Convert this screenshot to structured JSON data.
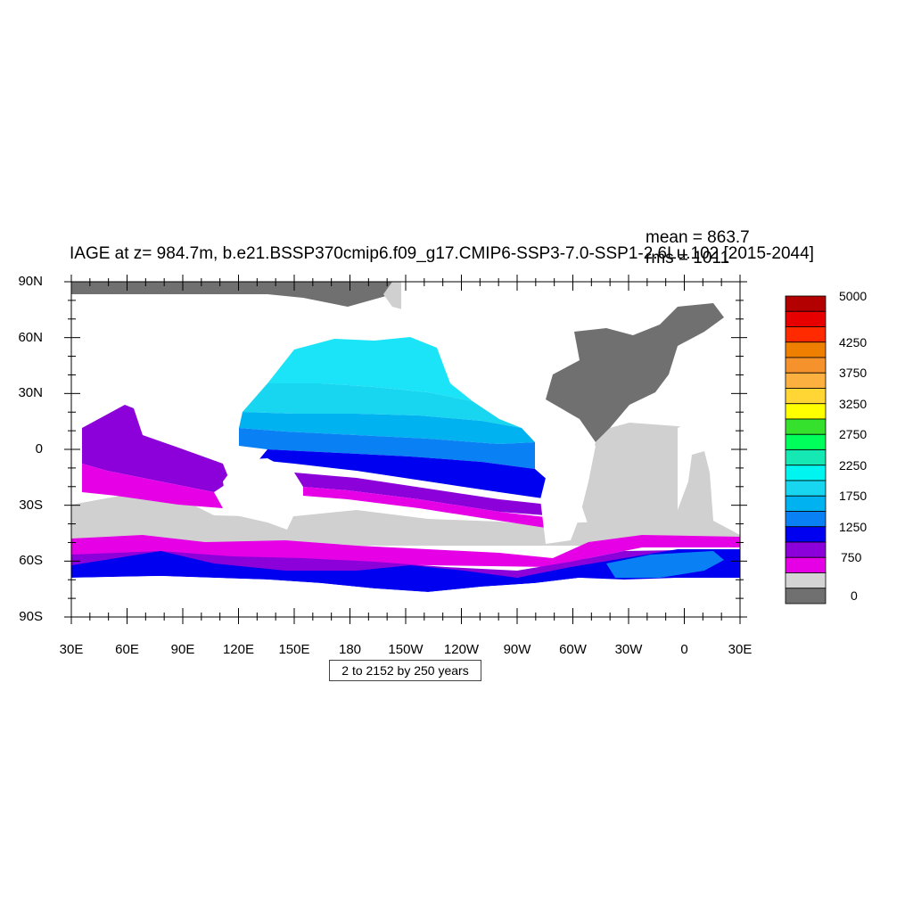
{
  "title": "IAGE at z= 984.7m, b.e21.BSSP370cmip6.f09_g17.CMIP6-SSP3-7.0-SSP1-2.6Lu.102 [2015-2044]",
  "stats": {
    "mean": "mean = 863.7",
    "rms": "rms = 1011"
  },
  "interval_note": "2 to 2152 by 250 years",
  "lat_labels": [
    "90N",
    "60N",
    "30N",
    "0",
    "30S",
    "60S",
    "90S"
  ],
  "lon_labels": [
    "30E",
    "60E",
    "90E",
    "120E",
    "150E",
    "180",
    "150W",
    "120W",
    "90W",
    "60W",
    "30W",
    "0",
    "30E"
  ],
  "colorbar": {
    "colors": [
      "#b30000",
      "#e60000",
      "#ff2a00",
      "#ef7f00",
      "#f5922c",
      "#fbb040",
      "#ffd633",
      "#ffff00",
      "#36e12d",
      "#00ff5a",
      "#16e8b4",
      "#00f5f0",
      "#18d6f0",
      "#00b2f0",
      "#0a80f5",
      "#0000f0",
      "#8c00d9",
      "#e600e6",
      "#d4d4d4",
      "#707070"
    ],
    "labels": [
      "5000",
      "4250",
      "3750",
      "3250",
      "2750",
      "2250",
      "1750",
      "1250",
      "750",
      "0"
    ]
  },
  "map_colors": {
    "land": "#ffffff",
    "ice": "#d0d0d0",
    "dark": "#707070",
    "magenta": "#e600e6",
    "purple": "#8c00d9",
    "blue": "#0000f0",
    "blue_mid": "#0a80f5",
    "cyan_dark": "#00b2f0",
    "cyan_light": "#18d6f0",
    "cyan_top": "#1ce4f8"
  }
}
